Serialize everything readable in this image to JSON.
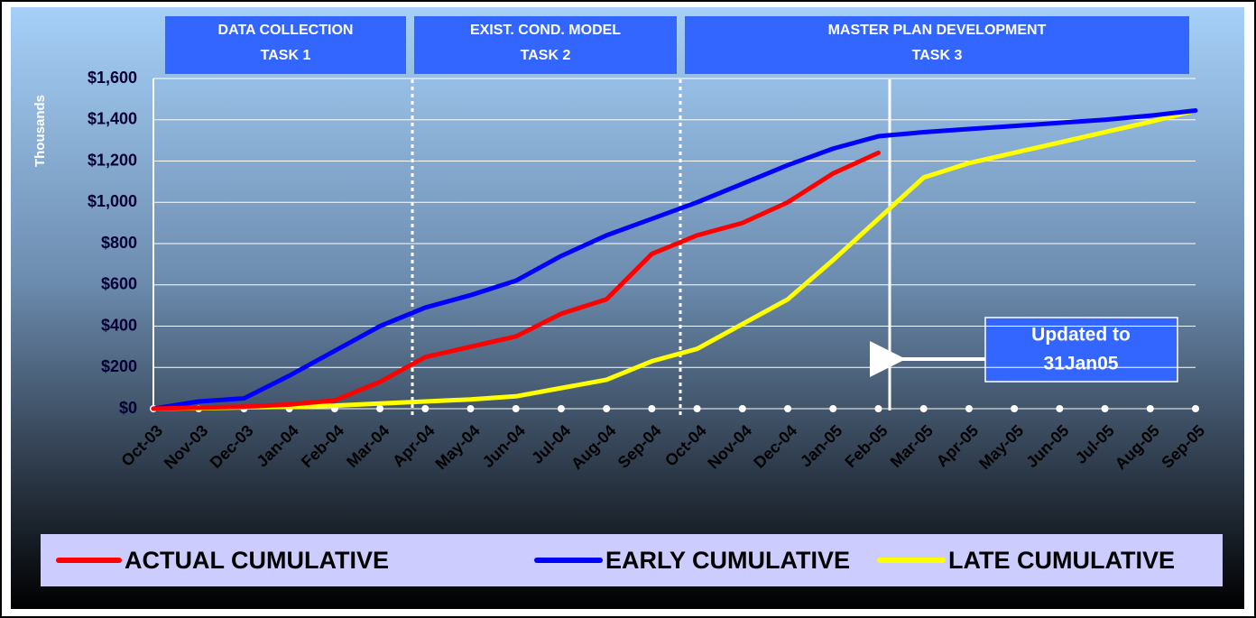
{
  "chart_data": {
    "type": "line",
    "y_label": "Thousands",
    "tasks": [
      {
        "lines": [
          "DATA COLLECTION",
          "TASK 1"
        ]
      },
      {
        "lines": [
          "EXIST. COND. MODEL",
          "TASK 2"
        ]
      },
      {
        "lines": [
          "MASTER PLAN DEVELOPMENT",
          "TASK 3"
        ]
      }
    ],
    "annotation": {
      "lines": [
        "Updated to",
        "31Jan05"
      ]
    },
    "categories": [
      "Oct-03",
      "Nov-03",
      "Dec-03",
      "Jan-04",
      "Feb-04",
      "Mar-04",
      "Apr-04",
      "May-04",
      "Jun-04",
      "Jul-04",
      "Aug-04",
      "Sep-04",
      "Oct-04",
      "Nov-04",
      "Dec-04",
      "Jan-05",
      "Feb-05",
      "Mar-05",
      "Apr-05",
      "May-05",
      "Jun-05",
      "Jul-05",
      "Aug-05",
      "Sep-05"
    ],
    "series": [
      {
        "name": "ACTUAL CUMULATIVE",
        "color": "#ff0000",
        "values": [
          0,
          5,
          10,
          20,
          40,
          130,
          250,
          300,
          350,
          460,
          530,
          750,
          840,
          900,
          1000,
          1140,
          1240,
          null,
          null,
          null,
          null,
          null,
          null,
          null
        ]
      },
      {
        "name": "EARLY CUMULATIVE",
        "color": "#0000ff",
        "values": [
          0,
          35,
          50,
          160,
          280,
          400,
          490,
          550,
          620,
          740,
          840,
          920,
          1000,
          1090,
          1180,
          1260,
          1320,
          1340,
          1355,
          1370,
          1385,
          1400,
          1420,
          1445
        ]
      },
      {
        "name": "LATE CUMULATIVE",
        "color": "#ffff00",
        "values": [
          0,
          3,
          6,
          10,
          15,
          25,
          35,
          45,
          60,
          100,
          140,
          230,
          290,
          410,
          530,
          720,
          920,
          1120,
          1190,
          1240,
          1290,
          1340,
          1390,
          1445
        ]
      }
    ],
    "ylim": [
      0,
      1600
    ],
    "yticks": [
      {
        "value": 0,
        "label": "$0"
      },
      {
        "value": 200,
        "label": "$200"
      },
      {
        "value": 400,
        "label": "$400"
      },
      {
        "value": 600,
        "label": "$600"
      },
      {
        "value": 800,
        "label": "$800"
      },
      {
        "value": 1000,
        "label": "$1,000"
      },
      {
        "value": 1200,
        "label": "$1,200"
      },
      {
        "value": 1400,
        "label": "$1,400"
      },
      {
        "value": 1600,
        "label": "$1,600"
      }
    ],
    "grid": true
  }
}
